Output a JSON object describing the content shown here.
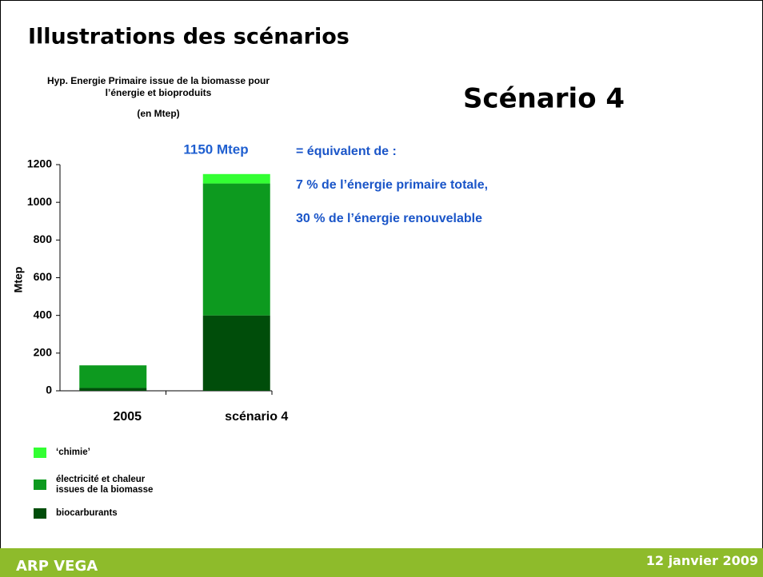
{
  "slide": {
    "title": "Illustrations des scénarios",
    "heading": "Scénario 4",
    "notes": [
      "= équivalent de :",
      "7 % de l’énergie primaire totale,",
      "30 % de l’énergie renouvelable"
    ],
    "footer_left": "ARP VEGA",
    "footer_right": "12 janvier 2009"
  },
  "chart_data": {
    "type": "stacked_bar",
    "title": "Hyp. Energie Primaire issue de la biomasse pour l’énergie et bioproduits",
    "subtitle": "(en Mtep)",
    "y_label": "Mtep",
    "annotation": "1150 Mtep",
    "categories": [
      "2005",
      "scénario 4"
    ],
    "series": [
      {
        "name": "biocarburants",
        "color": "#004d0a",
        "values": [
          15,
          400
        ]
      },
      {
        "name": "électricité et chaleur issues de la biomasse",
        "color": "#0d9a1f",
        "values": [
          120,
          700
        ]
      },
      {
        "name": "‘chimie’",
        "color": "#33ff33",
        "values": [
          0,
          50
        ]
      }
    ],
    "ylim": [
      0,
      1200
    ],
    "yticks": [
      0,
      200,
      400,
      600,
      800,
      1000,
      1200
    ]
  }
}
